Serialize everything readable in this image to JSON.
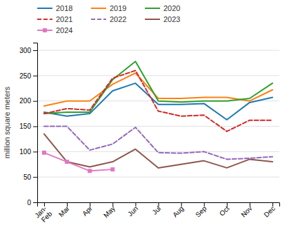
{
  "chart_data": {
    "type": "line",
    "categories": [
      "Jan-\nFeb",
      "Mar",
      "Apr",
      "May",
      "Jun",
      "Jul",
      "Aug",
      "Sep",
      "Oct",
      "Nov",
      "Dec"
    ],
    "series": [
      {
        "name": "2018",
        "line_style": "solid",
        "values": [
          178,
          170,
          175,
          220,
          235,
          193,
          193,
          195,
          163,
          197,
          207
        ]
      },
      {
        "name": "2019",
        "line_style": "solid",
        "values": [
          190,
          200,
          200,
          233,
          255,
          205,
          205,
          207,
          207,
          200,
          222
        ]
      },
      {
        "name": "2020",
        "line_style": "solid",
        "values": [
          175,
          178,
          178,
          242,
          278,
          200,
          198,
          200,
          200,
          205,
          235
        ]
      },
      {
        "name": "2021",
        "line_style": "dashed",
        "values": [
          175,
          185,
          182,
          245,
          260,
          180,
          170,
          172,
          140,
          162,
          162
        ]
      },
      {
        "name": "2022",
        "line_style": "dashed",
        "values": [
          150,
          150,
          103,
          115,
          148,
          98,
          97,
          100,
          85,
          87,
          90
        ]
      },
      {
        "name": "2023",
        "line_style": "solid",
        "values": [
          135,
          80,
          70,
          80,
          105,
          68,
          75,
          82,
          68,
          85,
          80
        ]
      },
      {
        "name": "2024",
        "line_style": "solid",
        "marker": "square",
        "values": [
          98,
          80,
          62,
          65,
          null,
          null,
          null,
          null,
          null,
          null,
          null
        ]
      }
    ],
    "ylabel": "million square meters",
    "ylim": [
      0,
      315
    ],
    "yticks": [
      0,
      50,
      100,
      150,
      200,
      250,
      300
    ],
    "grid": true,
    "legend": "top"
  }
}
